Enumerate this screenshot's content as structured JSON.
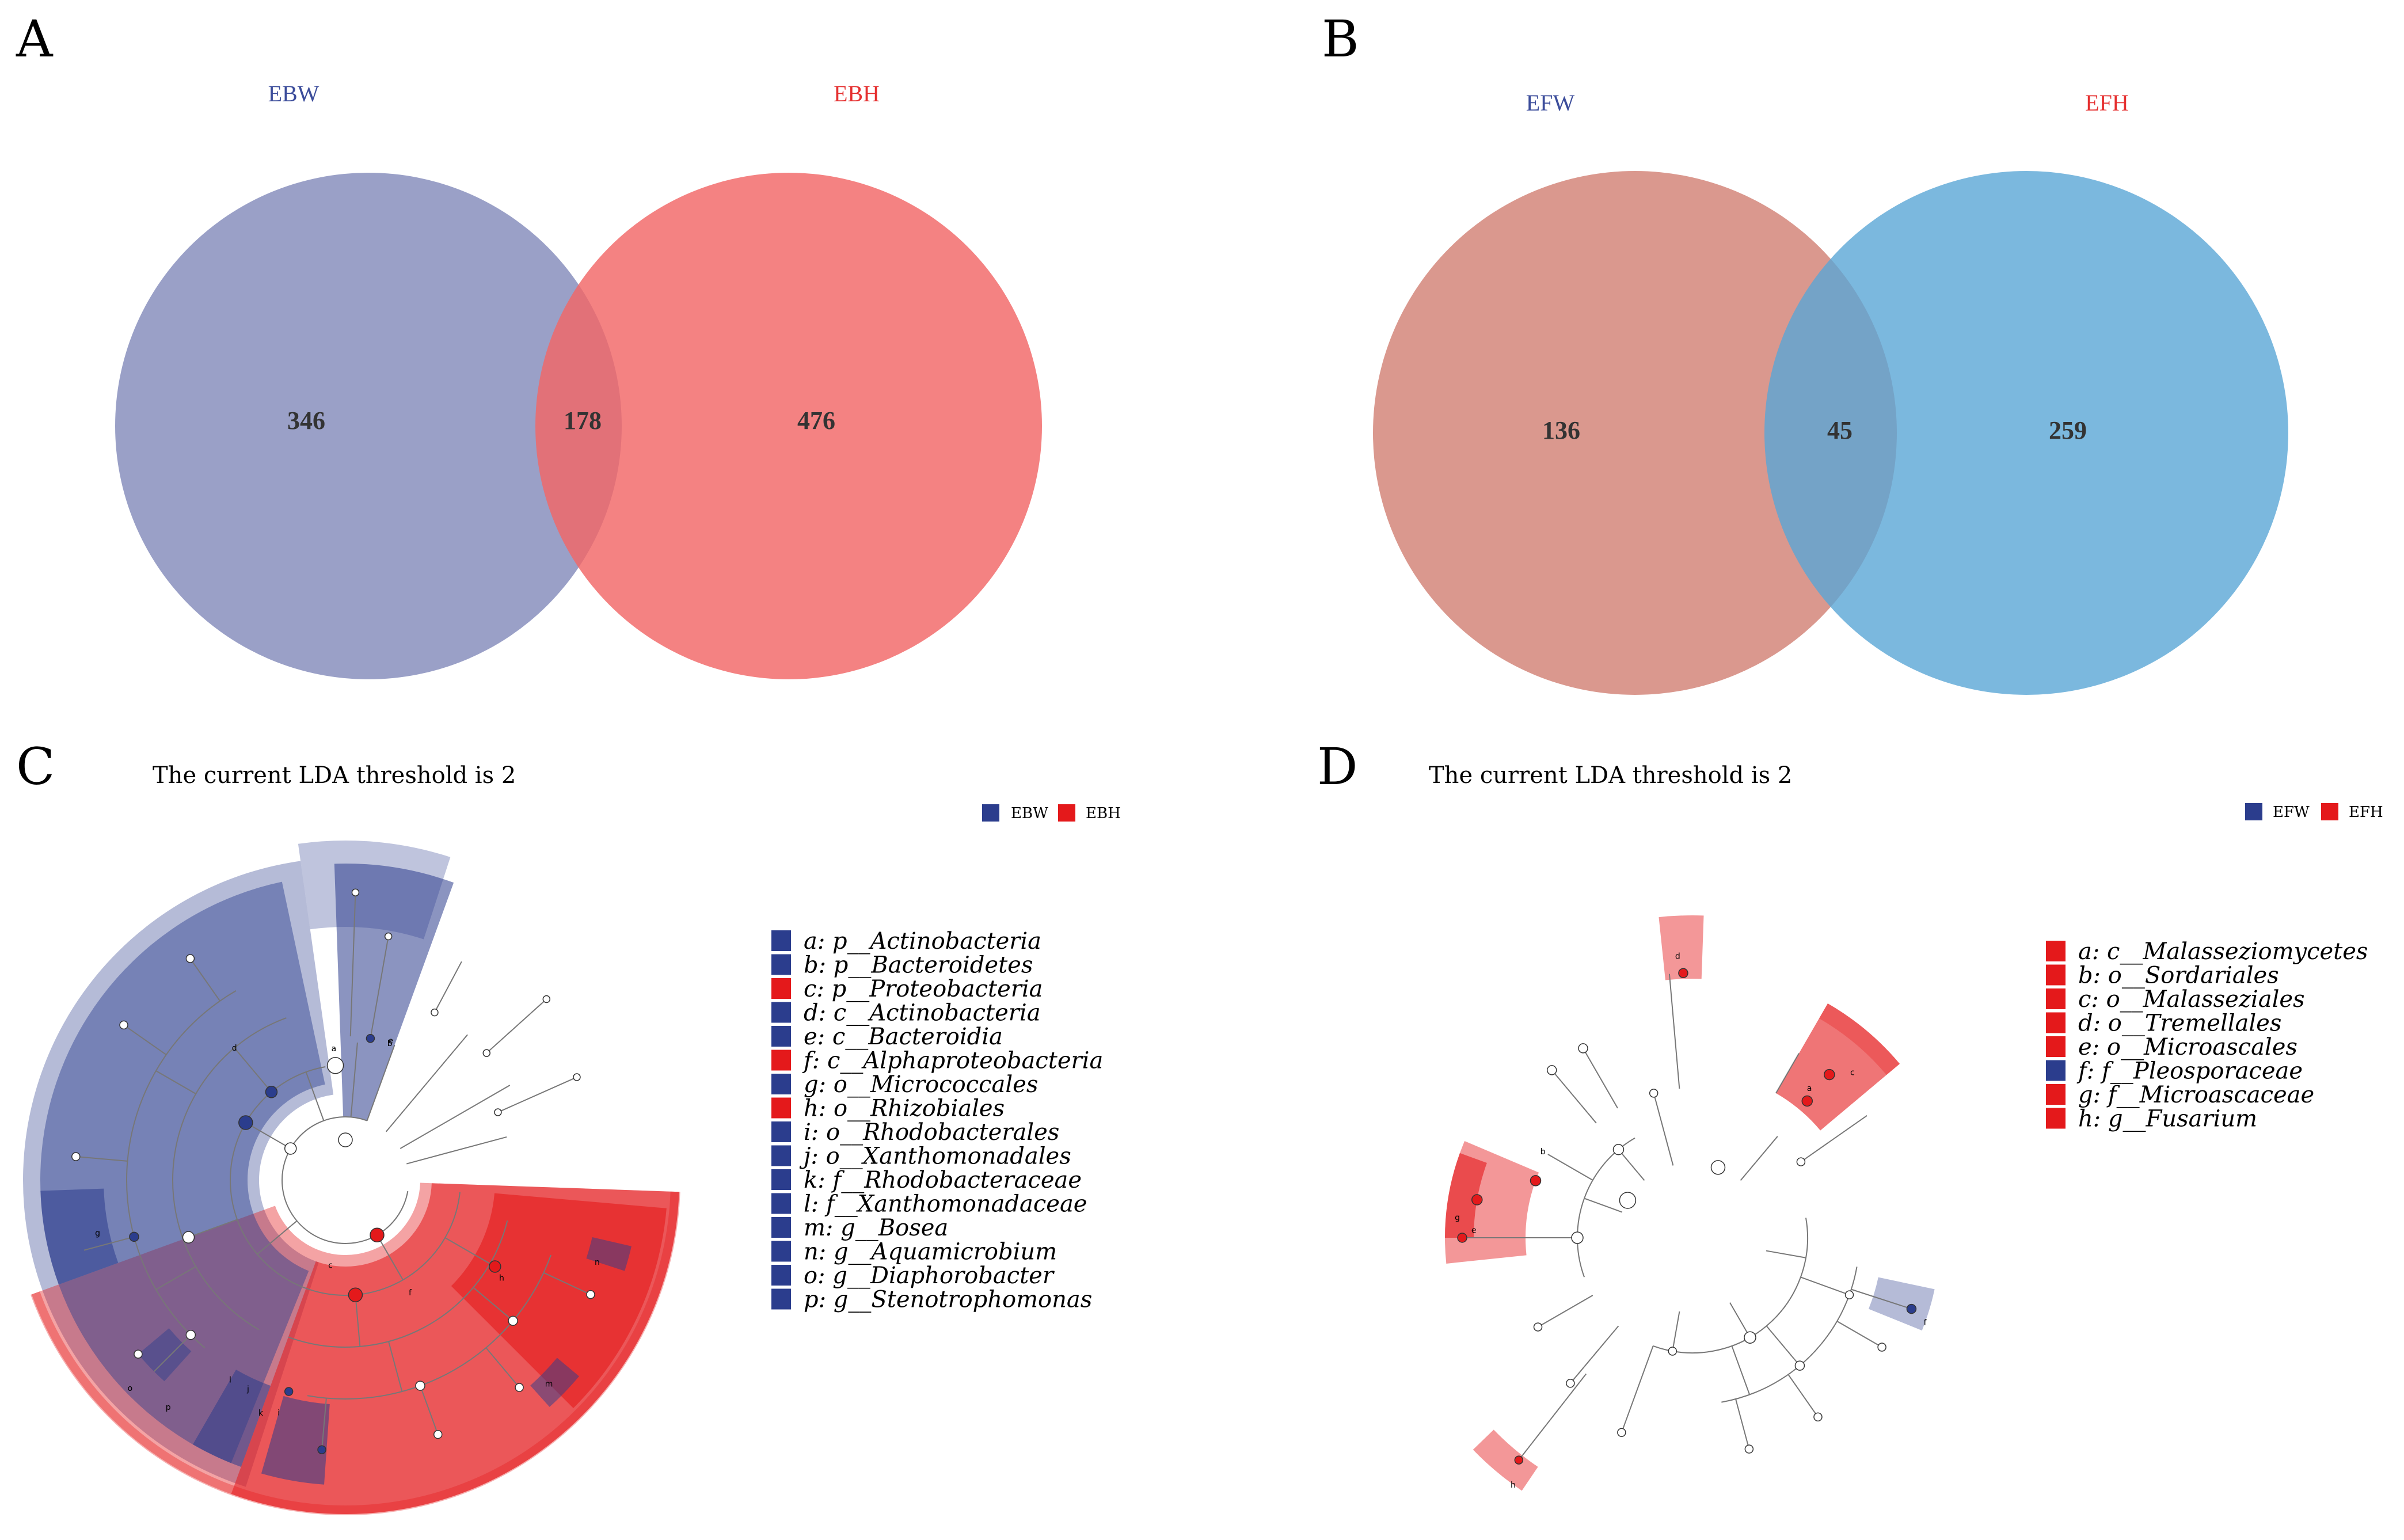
{
  "colors": {
    "blue": "#2b3d8d",
    "red": "#e4191b",
    "ebw_circle": "#8c93bf",
    "ebh_circle": "#f26666",
    "efw_circle": "#d4867a",
    "efh_circle": "#5aa6d6",
    "ebw_label": "#3c4d9b",
    "ebh_label": "#e53030",
    "efw_label": "#3c4d9b",
    "efh_label": "#e53030"
  },
  "panels": {
    "A": {
      "letter": "A",
      "sets": [
        {
          "name": "EBW"
        },
        {
          "name": "EBH"
        }
      ],
      "counts": {
        "left": "346",
        "overlap": "178",
        "right": "476"
      }
    },
    "B": {
      "letter": "B",
      "sets": [
        {
          "name": "EFW"
        },
        {
          "name": "EFH"
        }
      ],
      "counts": {
        "left": "136",
        "overlap": "45",
        "right": "259"
      }
    },
    "C": {
      "letter": "C",
      "threshold": "The current LDA threshold is 2",
      "group_legend": [
        {
          "name": "EBW",
          "color": "blue"
        },
        {
          "name": "EBH",
          "color": "red"
        }
      ],
      "taxa": [
        {
          "text": "a: p__Actinobacteria",
          "color": "blue"
        },
        {
          "text": "b: p__Bacteroidetes",
          "color": "blue"
        },
        {
          "text": "c: p__Proteobacteria",
          "color": "red"
        },
        {
          "text": "d: c__Actinobacteria",
          "color": "blue"
        },
        {
          "text": "e: c__Bacteroidia",
          "color": "blue"
        },
        {
          "text": "f: c__Alphaproteobacteria",
          "color": "red"
        },
        {
          "text": "g: o__Micrococcales",
          "color": "blue"
        },
        {
          "text": "h: o__Rhizobiales",
          "color": "red"
        },
        {
          "text": "i: o__Rhodobacterales",
          "color": "blue"
        },
        {
          "text": "j: o__Xanthomonadales",
          "color": "blue"
        },
        {
          "text": "k: f__Rhodobacteraceae",
          "color": "blue"
        },
        {
          "text": "l: f__Xanthomonadaceae",
          "color": "blue"
        },
        {
          "text": "m: g__Bosea",
          "color": "blue"
        },
        {
          "text": "n: g__Aquamicrobium",
          "color": "blue"
        },
        {
          "text": "o: g__Diaphorobacter",
          "color": "blue"
        },
        {
          "text": "p: g__Stenotrophomonas",
          "color": "blue"
        }
      ],
      "node_letters": [
        "a",
        "b",
        "c",
        "d",
        "e",
        "f",
        "g",
        "h",
        "i",
        "j",
        "k",
        "l",
        "m",
        "n",
        "o",
        "p"
      ]
    },
    "D": {
      "letter": "D",
      "threshold": "The current LDA threshold is 2",
      "group_legend": [
        {
          "name": "EFW",
          "color": "blue"
        },
        {
          "name": "EFH",
          "color": "red"
        }
      ],
      "taxa": [
        {
          "text": "a: c__Malasseziomycetes",
          "color": "red"
        },
        {
          "text": "b: o__Sordariales",
          "color": "red"
        },
        {
          "text": "c: o__Malasseziales",
          "color": "red"
        },
        {
          "text": "d: o__Tremellales",
          "color": "red"
        },
        {
          "text": "e: o__Microascales",
          "color": "red"
        },
        {
          "text": "f: f__Pleosporaceae",
          "color": "blue"
        },
        {
          "text": "g: f__Microascaceae",
          "color": "red"
        },
        {
          "text": "h: g__Fusarium",
          "color": "red"
        }
      ],
      "node_letters": [
        "a",
        "b",
        "c",
        "d",
        "e",
        "f",
        "g",
        "h"
      ]
    }
  }
}
